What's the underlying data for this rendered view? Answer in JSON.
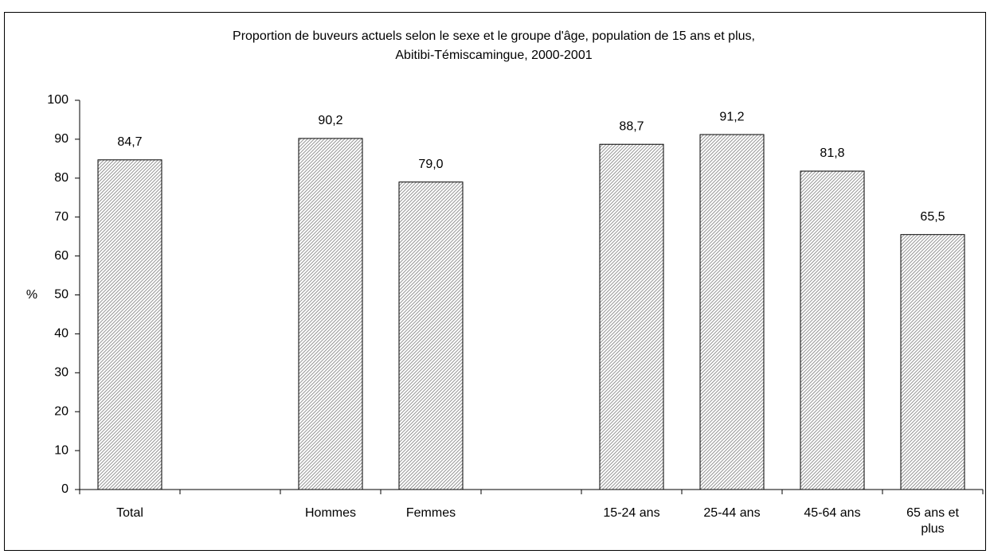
{
  "chart_data": {
    "type": "bar",
    "title": [
      "Proportion de buveurs actuels selon le sexe et le groupe d'âge, population de 15 ans et plus,",
      "Abitibi-Témiscamingue, 2000-2001"
    ],
    "y_label": "%",
    "categories": [
      "Total",
      null,
      "Hommes",
      "Femmes",
      null,
      "15-24 ans",
      "25-44 ans",
      "45-64 ans",
      "65 ans et plus"
    ],
    "values": [
      84.7,
      null,
      90.2,
      79.0,
      null,
      88.7,
      91.2,
      81.8,
      65.5
    ],
    "value_labels": [
      "84,7",
      null,
      "90,2",
      "79,0",
      null,
      "88,7",
      "91,2",
      "81,8",
      "65,5"
    ],
    "color": "#7a7a7a",
    "ylim": [
      0,
      100
    ],
    "yticks": [
      0,
      10,
      20,
      30,
      40,
      50,
      60,
      70,
      80,
      90,
      100
    ],
    "grid": false
  }
}
